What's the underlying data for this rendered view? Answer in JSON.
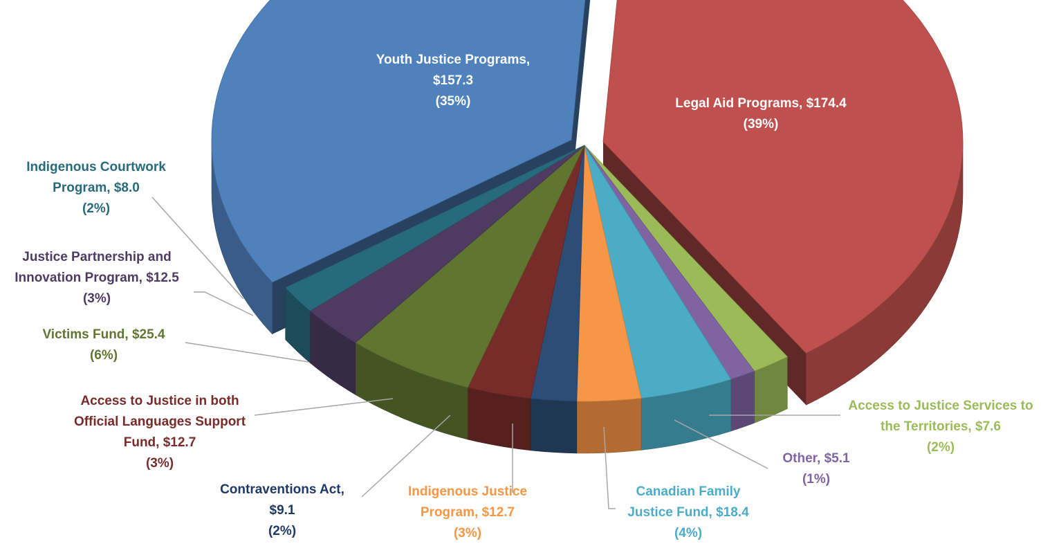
{
  "chart_data": {
    "type": "pie",
    "title": "",
    "slices": [
      {
        "label_lines": [
          "Legal Aid Programs,  $174.4",
          "(39%)"
        ],
        "value": 174.4,
        "percent": 39,
        "color": "#C0504D",
        "label_color": "#FFFFFF",
        "inside": true
      },
      {
        "label_lines": [
          "Access to Justice Services to",
          "the Territories,  $7.6",
          "(2%)"
        ],
        "value": 7.6,
        "percent": 2,
        "color": "#9BBB59",
        "label_color": "#9BBB59",
        "inside": false
      },
      {
        "label_lines": [
          "Other,  $5.1",
          "(1%)"
        ],
        "value": 5.1,
        "percent": 1,
        "color": "#8064A2",
        "label_color": "#8064A2",
        "inside": false
      },
      {
        "label_lines": [
          "Canadian Family",
          "Justice Fund,  $18.4",
          "(4%)"
        ],
        "value": 18.4,
        "percent": 4,
        "color": "#4BACC6",
        "label_color": "#4BACC6",
        "inside": false
      },
      {
        "label_lines": [
          "Indigenous Justice",
          "Program,  $12.7",
          "(3%)"
        ],
        "value": 12.7,
        "percent": 3,
        "color": "#F79646",
        "label_color": "#F79646",
        "inside": false
      },
      {
        "label_lines": [
          "Contraventions Act,",
          "$9.1",
          "(2%)"
        ],
        "value": 9.1,
        "percent": 2,
        "color": "#2C4D75",
        "label_color": "#1F3864",
        "inside": false
      },
      {
        "label_lines": [
          "Access to Justice in both",
          "Official Languages Support",
          "Fund,  $12.7",
          "(3%)"
        ],
        "value": 12.7,
        "percent": 3,
        "color": "#772C2A",
        "label_color": "#772C2A",
        "inside": false
      },
      {
        "label_lines": [
          "Victims Fund,  $25.4",
          "(6%)"
        ],
        "value": 25.4,
        "percent": 6,
        "color": "#5F7530",
        "label_color": "#5F7530",
        "inside": false
      },
      {
        "label_lines": [
          "Justice Partnership and",
          "Innovation Program,  $12.5",
          "(3%)"
        ],
        "value": 12.5,
        "percent": 3,
        "color": "#4D3B62",
        "label_color": "#4D3B62",
        "inside": false
      },
      {
        "label_lines": [
          "Indigenous Courtwork",
          "Program,  $8.0",
          "(2%)"
        ],
        "value": 8.0,
        "percent": 2,
        "color": "#276A7C",
        "label_color": "#276A7C",
        "inside": false
      },
      {
        "label_lines": [
          "Youth Justice Programs,",
          "$157.3",
          "(35%)"
        ],
        "value": 157.3,
        "percent": 35,
        "color": "#4F81BD",
        "label_color": "#FFFFFF",
        "inside": true
      }
    ],
    "legend": "none",
    "style": "3d-exploded"
  }
}
